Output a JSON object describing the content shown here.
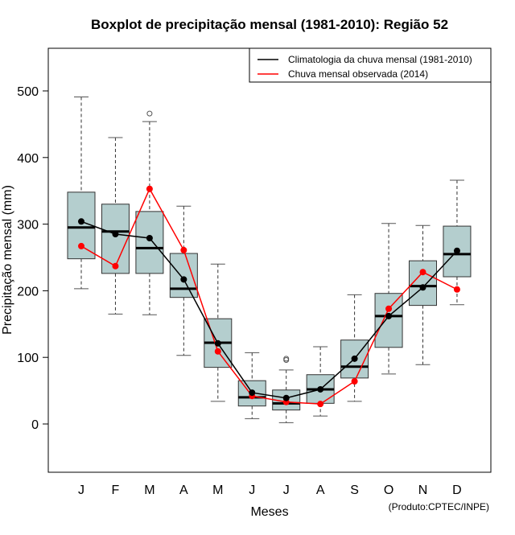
{
  "chart_data": {
    "type": "boxplot",
    "title": "Boxplot de precipitação mensal (1981-2010): Região 52",
    "xlabel": "Meses",
    "ylabel": "Precipitação mensal (mm)",
    "ylim": [
      -70,
      570
    ],
    "yticks": [
      0,
      100,
      200,
      300,
      400,
      500
    ],
    "categories": [
      "J",
      "F",
      "M",
      "A",
      "M",
      "J",
      "J",
      "A",
      "S",
      "O",
      "N",
      "D"
    ],
    "boxes": [
      {
        "low": 203,
        "q1": 248,
        "median": 295,
        "q3": 348,
        "high": 491,
        "outliers": []
      },
      {
        "low": 165,
        "q1": 226,
        "median": 289,
        "q3": 330,
        "high": 430,
        "outliers": []
      },
      {
        "low": 164,
        "q1": 226,
        "median": 264,
        "q3": 319,
        "high": 454,
        "outliers": [
          466
        ]
      },
      {
        "low": 103,
        "q1": 190,
        "median": 203,
        "q3": 256,
        "high": 327,
        "outliers": []
      },
      {
        "low": 34,
        "q1": 85,
        "median": 122,
        "q3": 158,
        "high": 240,
        "outliers": []
      },
      {
        "low": 8,
        "q1": 27,
        "median": 40,
        "q3": 65,
        "high": 107,
        "outliers": []
      },
      {
        "low": 2,
        "q1": 21,
        "median": 31,
        "q3": 51,
        "high": 81,
        "outliers": [
          96,
          98
        ]
      },
      {
        "low": 12,
        "q1": 31,
        "median": 52,
        "q3": 74,
        "high": 116,
        "outliers": []
      },
      {
        "low": 34,
        "q1": 69,
        "median": 86,
        "q3": 126,
        "high": 194,
        "outliers": []
      },
      {
        "low": 75,
        "q1": 115,
        "median": 162,
        "q3": 196,
        "high": 301,
        "outliers": []
      },
      {
        "low": 89,
        "q1": 178,
        "median": 207,
        "q3": 245,
        "high": 298,
        "outliers": []
      },
      {
        "low": 179,
        "q1": 221,
        "median": 255,
        "q3": 297,
        "high": 366,
        "outliers": []
      }
    ],
    "series": [
      {
        "name": "Climatologia da chuva mensal (1981-2010)",
        "color": "#000000",
        "values": [
          304,
          285,
          279,
          217,
          121,
          47,
          39,
          52,
          98,
          162,
          205,
          260
        ]
      },
      {
        "name": "Chuva mensal observada (2014)",
        "color": "#ff0000",
        "values": [
          267,
          237,
          353,
          261,
          109,
          42,
          33,
          30,
          64,
          173,
          228,
          202
        ]
      }
    ],
    "legend": "top-right",
    "box_color": "#b4cece",
    "credit": "(Produto:CPTEC/INPE)"
  }
}
